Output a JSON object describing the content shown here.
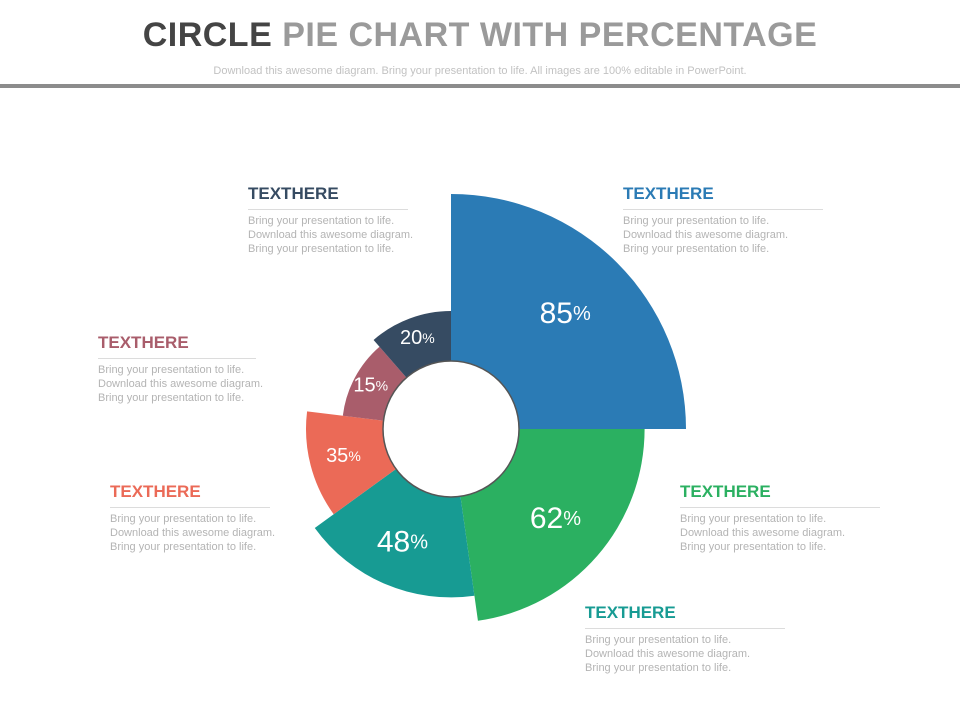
{
  "header": {
    "title_part1": "CIRCLE",
    "title_part2": " PIE CHART WITH PERCENTAGE",
    "subtitle": "Download this awesome diagram. Bring your presentation to life. All images are 100% editable in PowerPoint."
  },
  "chart_data": {
    "type": "pie",
    "categories": [
      "85%",
      "62%",
      "48%",
      "35%",
      "15%",
      "20%"
    ],
    "values": [
      85,
      62,
      48,
      35,
      15,
      20
    ],
    "value_suffix": "%",
    "colors": [
      "#2b7bb5",
      "#2bb061",
      "#179b93",
      "#eb6a57",
      "#a95d6b",
      "#364b62"
    ]
  },
  "callouts": [
    {
      "heading": "TEXTHERE",
      "color": "#2b7bb5",
      "lines": [
        "Bring your presentation to life.",
        "Download this awesome diagram.",
        "Bring your presentation to life."
      ]
    },
    {
      "heading": "TEXTHERE",
      "color": "#2bb061",
      "lines": [
        "Bring your presentation to life.",
        "Download this awesome diagram.",
        "Bring your presentation to life."
      ]
    },
    {
      "heading": "TEXTHERE",
      "color": "#179b93",
      "lines": [
        "Bring your presentation to life.",
        "Download this awesome diagram.",
        "Bring your presentation to life."
      ]
    },
    {
      "heading": "TEXTHERE",
      "color": "#eb6a57",
      "lines": [
        "Bring your presentation to life.",
        "Download this awesome diagram.",
        "Bring your presentation to life."
      ]
    },
    {
      "heading": "TEXTHERE",
      "color": "#a95d6b",
      "lines": [
        "Bring your presentation to life.",
        "Download this awesome diagram.",
        "Bring your presentation to life."
      ]
    },
    {
      "heading": "TEXTHERE",
      "color": "#364b62",
      "lines": [
        "Bring your presentation to life.",
        "Download this awesome diagram.",
        "Bring your presentation to life."
      ]
    }
  ]
}
